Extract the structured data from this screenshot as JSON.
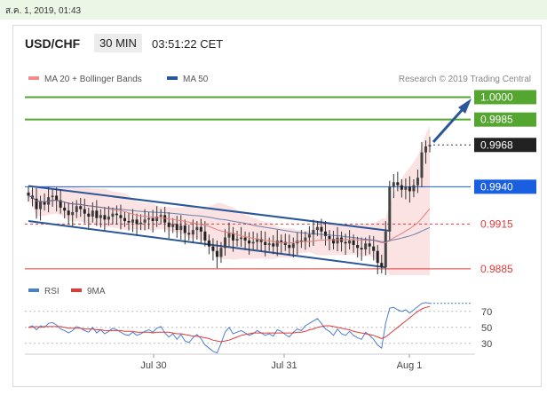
{
  "date_stamp": "ส.ค. 1, 2019, 01:43",
  "header": {
    "pair": "USD/CHF",
    "timeframe": "30 MIN",
    "time": "03:51:22 CET"
  },
  "legend": {
    "bollinger": "MA 20 + Bollinger Bands",
    "ma50": "MA 50",
    "copyright": "Research © 2019 Trading Central"
  },
  "colors": {
    "green": "#55a630",
    "blue": "#2b5797",
    "red": "#e03a3a",
    "black_label": "#222222",
    "blue_label": "#1a5fe0",
    "bb_fill": "#fbdede",
    "rsi": "#4a7fd0"
  },
  "chart_data": {
    "type": "candlestick",
    "price_axis": {
      "ylim": [
        0.9876,
        1.0008
      ]
    },
    "x_ticks": [
      "Jul 30",
      "Jul 31",
      "Aug 1"
    ],
    "levels": [
      {
        "value": 1.0,
        "label": "1.0000",
        "style": "green-solid"
      },
      {
        "value": 0.9985,
        "label": "0.9985",
        "style": "green-solid"
      },
      {
        "value": 0.9968,
        "label": "0.9968",
        "style": "last-price"
      },
      {
        "value": 0.994,
        "label": "0.9940",
        "style": "blue-solid"
      },
      {
        "value": 0.9915,
        "label": "0.9915",
        "style": "red-dashed"
      },
      {
        "value": 0.9885,
        "label": "0.9885",
        "style": "red-solid"
      }
    ],
    "close_series": [
      0.9934,
      0.9932,
      0.9925,
      0.993,
      0.9928,
      0.9933,
      0.9934,
      0.9931,
      0.9926,
      0.9924,
      0.9921,
      0.9923,
      0.9927,
      0.9925,
      0.9922,
      0.992,
      0.9924,
      0.9919,
      0.9921,
      0.9918,
      0.992,
      0.9922,
      0.9921,
      0.9919,
      0.9917,
      0.9916,
      0.9918,
      0.9915,
      0.9916,
      0.9918,
      0.9919,
      0.9917,
      0.992,
      0.9921,
      0.9916,
      0.9913,
      0.9915,
      0.9911,
      0.9914,
      0.9909,
      0.9908,
      0.9911,
      0.9913,
      0.991,
      0.9904,
      0.99,
      0.9897,
      0.9893,
      0.9899,
      0.9906,
      0.9909,
      0.9904,
      0.9905,
      0.9906,
      0.9904,
      0.9902,
      0.9903,
      0.9905,
      0.9903,
      0.9901,
      0.9902,
      0.99,
      0.9904,
      0.9903,
      0.9901,
      0.9899,
      0.9902,
      0.9904,
      0.9903,
      0.9906,
      0.9908,
      0.9911,
      0.9913,
      0.991,
      0.9907,
      0.9905,
      0.9902,
      0.9906,
      0.9903,
      0.9902,
      0.9904,
      0.9901,
      0.9899,
      0.9898,
      0.9902,
      0.99,
      0.9897,
      0.9889,
      0.9886,
      0.991,
      0.994,
      0.9943,
      0.9941,
      0.9938,
      0.994,
      0.9937,
      0.9941,
      0.9946,
      0.9963,
      0.9967,
      0.9968
    ],
    "rsi": {
      "label": "RSI",
      "ma_label": "9MA",
      "levels": [
        30,
        50,
        70
      ],
      "ylim": [
        22,
        82
      ],
      "values": [
        50,
        52,
        47,
        52,
        50,
        55,
        56,
        53,
        48,
        46,
        43,
        46,
        51,
        49,
        46,
        44,
        50,
        43,
        47,
        42,
        45,
        49,
        47,
        44,
        41,
        40,
        44,
        40,
        42,
        45,
        47,
        44,
        49,
        51,
        43,
        38,
        42,
        35,
        41,
        33,
        31,
        37,
        41,
        36,
        28,
        24,
        20,
        18,
        30,
        44,
        50,
        42,
        44,
        46,
        43,
        40,
        42,
        46,
        43,
        40,
        42,
        39,
        47,
        45,
        41,
        38,
        44,
        48,
        46,
        52,
        55,
        58,
        61,
        55,
        48,
        45,
        40,
        48,
        42,
        40,
        45,
        40,
        37,
        35,
        44,
        40,
        35,
        28,
        24,
        55,
        74,
        75,
        72,
        70,
        72,
        68,
        72,
        76,
        80,
        81,
        80
      ],
      "ma": [
        50,
        50,
        51,
        50,
        51,
        51,
        51,
        51,
        51,
        50,
        49,
        49,
        49,
        49,
        48,
        48,
        48,
        47,
        47,
        46,
        46,
        46,
        46,
        46,
        45,
        45,
        45,
        44,
        44,
        44,
        44,
        43,
        44,
        44,
        44,
        44,
        43,
        42,
        42,
        41,
        40,
        39,
        39,
        38,
        37,
        36,
        34,
        33,
        32,
        33,
        34,
        36,
        38,
        40,
        41,
        42,
        43,
        43,
        43,
        43,
        43,
        43,
        43,
        43,
        43,
        43,
        43,
        44,
        44,
        45,
        47,
        48,
        50,
        51,
        52,
        52,
        51,
        50,
        49,
        48,
        47,
        45,
        44,
        43,
        42,
        41,
        40,
        38,
        36,
        38,
        42,
        46,
        50,
        54,
        58,
        62,
        66,
        70,
        73,
        75,
        76
      ]
    }
  }
}
